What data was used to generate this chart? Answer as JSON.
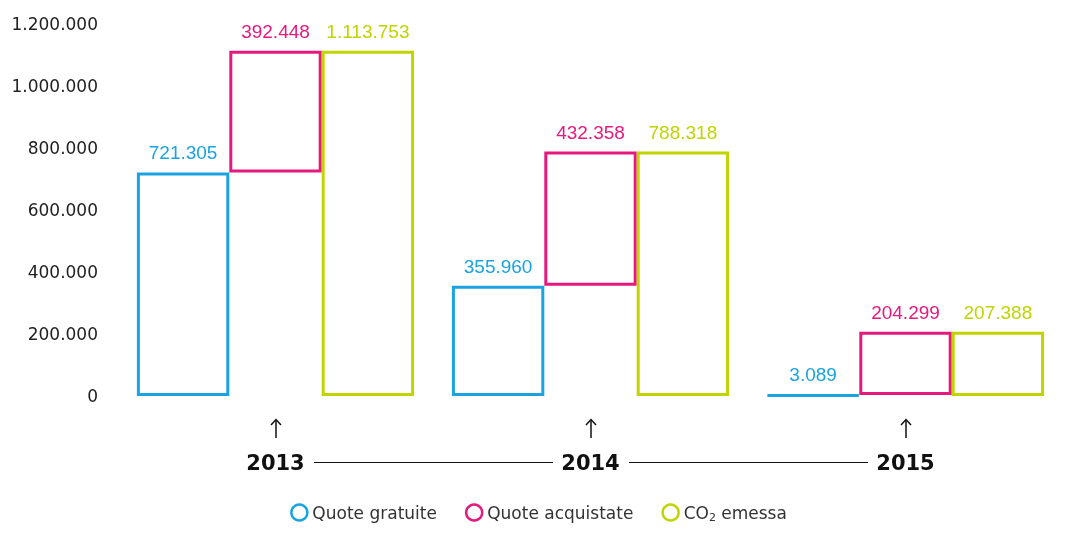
{
  "chart_data": {
    "type": "bar",
    "categories": [
      "2013",
      "2014",
      "2015"
    ],
    "series": [
      {
        "name": "Quote gratuite",
        "color": "#1aa3e0",
        "values": [
          721305,
          355960,
          3089
        ],
        "value_labels": [
          "721.305",
          "355.960",
          "3.089"
        ]
      },
      {
        "name": "Quote acquistate",
        "color": "#e5187e",
        "values": [
          392448,
          432358,
          204299
        ],
        "base": [
          721305,
          355960,
          3089
        ],
        "value_labels": [
          "392.448",
          "432.358",
          "204.299"
        ]
      },
      {
        "name": "CO$_{2}$ emessa",
        "color": "#bfd400",
        "values": [
          1113753,
          788318,
          207388
        ],
        "value_labels": [
          "1.113.753",
          "788.318",
          "207.388"
        ]
      }
    ],
    "ylim": [
      0,
      1200000
    ],
    "yticks": [
      {
        "value": 0,
        "label": "0"
      },
      {
        "value": 200000,
        "label": "200.000"
      },
      {
        "value": 400000,
        "label": "400.000"
      },
      {
        "value": 600000,
        "label": "600.000"
      },
      {
        "value": 800000,
        "label": "800.000"
      },
      {
        "value": 1000000,
        "label": "1.000.000"
      },
      {
        "value": 1200000,
        "label": "1.200.000"
      }
    ],
    "grid": false,
    "legend": "bottom"
  }
}
